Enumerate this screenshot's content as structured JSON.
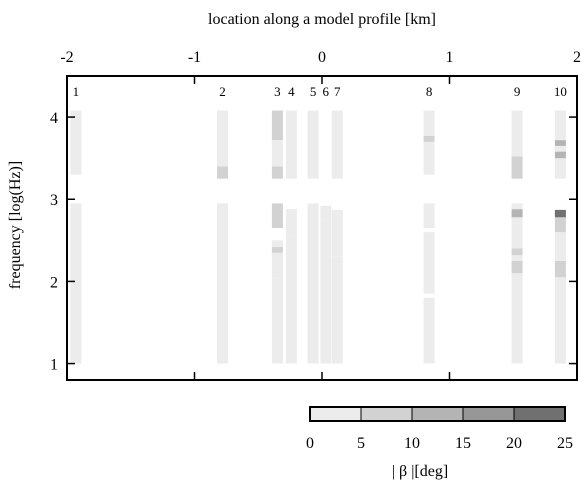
{
  "chart_data": {
    "type": "heatmap",
    "title": "",
    "xlabel": "location along a model profile [km]",
    "ylabel": "frequency [log(Hz)]",
    "xlim": [
      -2,
      2
    ],
    "ylim": [
      0.8,
      4.5
    ],
    "xticks": [
      "-2",
      "-1",
      "0",
      "1",
      "2"
    ],
    "yticks": [
      "1",
      "2",
      "3",
      "4"
    ],
    "colorbar": {
      "label": "| β |[deg]",
      "ticks": [
        "0",
        "5",
        "10",
        "15",
        "20",
        "25"
      ],
      "bins": [
        {
          "from": 0,
          "to": 5,
          "color": "#ececec"
        },
        {
          "from": 5,
          "to": 10,
          "color": "#d2d2d2"
        },
        {
          "from": 10,
          "to": 15,
          "color": "#b4b4b4"
        },
        {
          "from": 15,
          "to": 20,
          "color": "#979797"
        },
        {
          "from": 20,
          "to": 25,
          "color": "#707070"
        }
      ]
    },
    "stations": [
      {
        "label": "1",
        "x": -1.93,
        "segments": [
          [
            1.0,
            2.6,
            2
          ],
          [
            2.6,
            2.95,
            2
          ],
          [
            3.3,
            4.08,
            2
          ]
        ]
      },
      {
        "label": "2",
        "x": -0.78,
        "segments": [
          [
            1.0,
            2.55,
            2
          ],
          [
            2.55,
            2.95,
            2
          ],
          [
            3.25,
            3.4,
            8
          ],
          [
            3.4,
            4.08,
            2
          ]
        ]
      },
      {
        "label": "3",
        "x": -0.35,
        "segments": [
          [
            1.0,
            2.05,
            2
          ],
          [
            2.05,
            2.35,
            4
          ],
          [
            2.35,
            2.42,
            9
          ],
          [
            2.42,
            2.5,
            4
          ],
          [
            2.65,
            2.95,
            6
          ],
          [
            3.25,
            3.4,
            7
          ],
          [
            3.4,
            3.72,
            3
          ],
          [
            3.72,
            4.08,
            7
          ]
        ]
      },
      {
        "label": "4",
        "x": -0.24,
        "segments": [
          [
            1.0,
            2.55,
            2
          ],
          [
            2.55,
            2.88,
            2
          ],
          [
            3.25,
            4.08,
            2
          ]
        ]
      },
      {
        "label": "5",
        "x": -0.07,
        "segments": [
          [
            1.0,
            2.95,
            2
          ],
          [
            3.25,
            4.08,
            2
          ]
        ]
      },
      {
        "label": "6",
        "x": 0.03,
        "segments": [
          [
            1.0,
            2.75,
            2
          ],
          [
            2.75,
            2.92,
            2
          ]
        ]
      },
      {
        "label": "7",
        "x": 0.12,
        "segments": [
          [
            1.0,
            2.3,
            2
          ],
          [
            2.3,
            2.87,
            2
          ],
          [
            3.25,
            4.08,
            2
          ]
        ]
      },
      {
        "label": "8",
        "x": 0.84,
        "segments": [
          [
            1.0,
            1.8,
            2
          ],
          [
            1.85,
            2.6,
            2
          ],
          [
            2.65,
            2.95,
            2
          ],
          [
            3.3,
            3.7,
            2
          ],
          [
            3.7,
            3.77,
            6
          ],
          [
            3.77,
            4.08,
            2
          ]
        ]
      },
      {
        "label": "9",
        "x": 1.53,
        "segments": [
          [
            1.0,
            2.1,
            2
          ],
          [
            2.1,
            2.25,
            5
          ],
          [
            2.25,
            2.32,
            2
          ],
          [
            2.32,
            2.4,
            5
          ],
          [
            2.4,
            2.78,
            2
          ],
          [
            2.78,
            2.88,
            10
          ],
          [
            2.88,
            2.95,
            2
          ],
          [
            3.25,
            3.38,
            5
          ],
          [
            3.38,
            3.52,
            7
          ],
          [
            3.52,
            4.08,
            2
          ]
        ]
      },
      {
        "label": "10",
        "x": 1.87,
        "segments": [
          [
            1.0,
            2.05,
            2
          ],
          [
            2.05,
            2.25,
            5
          ],
          [
            2.25,
            2.6,
            2
          ],
          [
            2.6,
            2.65,
            5
          ],
          [
            2.65,
            2.78,
            7
          ],
          [
            2.78,
            2.87,
            22
          ],
          [
            3.25,
            3.5,
            4
          ],
          [
            3.5,
            3.58,
            10
          ],
          [
            3.58,
            3.65,
            4
          ],
          [
            3.65,
            3.72,
            10
          ],
          [
            3.72,
            4.08,
            2
          ]
        ]
      }
    ]
  }
}
